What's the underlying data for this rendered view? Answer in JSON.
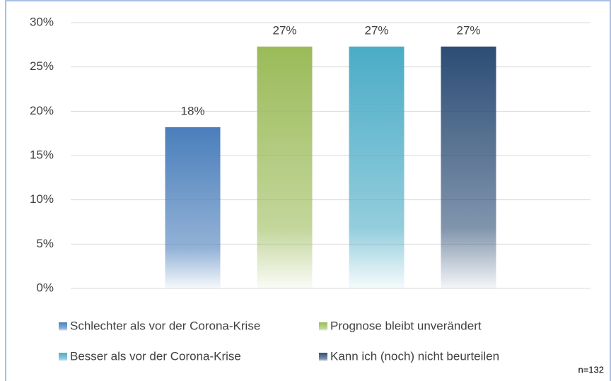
{
  "chart_data": {
    "type": "bar",
    "categories": [
      null
    ],
    "series": [
      {
        "name": "Schlechter als vor der Corona-Krise",
        "color": "#4a7ebb",
        "values": [
          18.2
        ],
        "value_labels": [
          "18%"
        ]
      },
      {
        "name": "Prognose bleibt unverändert",
        "color": "#9bbb59",
        "values": [
          27.3
        ],
        "value_labels": [
          "27%"
        ]
      },
      {
        "name": "Besser als vor der Corona-Krise",
        "color": "#4bacc6",
        "values": [
          27.3
        ],
        "value_labels": [
          "27%"
        ]
      },
      {
        "name": "Kann ich (noch) nicht beurteilen",
        "color": "#2c4d75",
        "values": [
          27.3
        ],
        "value_labels": [
          "27%"
        ]
      }
    ],
    "ylim": [
      0,
      30
    ],
    "yticks": [
      {
        "value": 0,
        "label": "0%"
      },
      {
        "value": 5,
        "label": "5%"
      },
      {
        "value": 10,
        "label": "10%"
      },
      {
        "value": 15,
        "label": "15%"
      },
      {
        "value": 20,
        "label": "20%"
      },
      {
        "value": 25,
        "label": "25%"
      },
      {
        "value": 30,
        "label": "30%"
      }
    ],
    "grid": true,
    "legend": "bottom",
    "annotations": [
      "n=132"
    ]
  }
}
